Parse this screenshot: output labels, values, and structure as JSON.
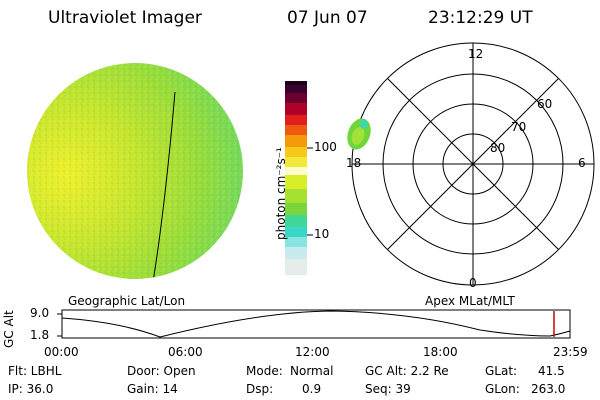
{
  "header": {
    "title": "Ultraviolet Imager",
    "date": "07 Jun 07",
    "time": "23:12:29 UT"
  },
  "colors": {
    "disk_green": "#8fdc37",
    "disk_yellow": "#e9ef2a",
    "disk_teal": "#40d8a8",
    "auroral_green": "#6fd63a",
    "time_marker": "#d00000"
  },
  "left_panel": {
    "label": "Geographic Lat/Lon"
  },
  "colorbar": {
    "unit_label": "photon cm⁻²s⁻¹",
    "ticks": [
      "100",
      "10"
    ]
  },
  "polar_plot": {
    "label": "Apex MLat/MLT",
    "mlt_labels": {
      "top": "12",
      "left": "18",
      "right": "6",
      "bottom": "0"
    },
    "lat_labels": [
      "60",
      "70",
      "80"
    ]
  },
  "altitude_strip": {
    "ylabel": "GC Alt",
    "ymax": "9.0",
    "ymin": "1.8",
    "xticks": [
      "00:00",
      "06:00",
      "12:00",
      "18:00",
      "23:59"
    ]
  },
  "info": {
    "row1": {
      "filter": "Flt: LBHL",
      "door": "Door: Open",
      "mode_label": "Mode:",
      "mode_value": "Normal",
      "gc_alt": "GC Alt: 2.2 Re",
      "glat_label": "GLat:",
      "glat_value": "41.5"
    },
    "row2": {
      "ip": "IP: 36.0",
      "gain": "Gain: 14",
      "dsp_label": "Dsp:",
      "dsp_value": "0.9",
      "seq": "Seq: 39",
      "glon_label": "GLon:",
      "glon_value": "263.0"
    }
  }
}
